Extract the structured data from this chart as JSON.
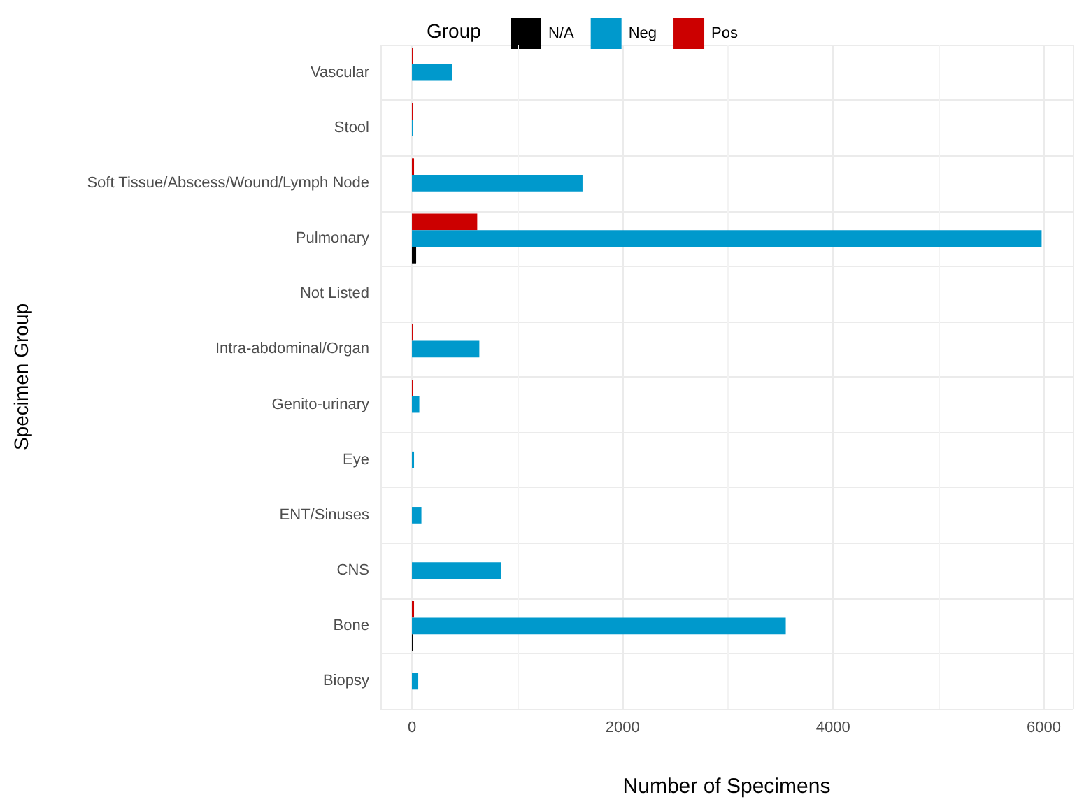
{
  "chart_data": {
    "type": "bar",
    "orientation": "horizontal",
    "xlabel": "Number of Specimens",
    "ylabel": "Specimen Group",
    "legend_title": "Group",
    "categories": [
      "Vascular",
      "Stool",
      "Soft Tissue/Abscess/Wound/Lymph Node",
      "Pulmonary",
      "Not Listed",
      "Intra-abdominal/Organ",
      "Genito-urinary",
      "Eye",
      "ENT/Sinuses",
      "CNS",
      "Bone",
      "Biopsy"
    ],
    "series": [
      {
        "name": "N/A",
        "color": "#000000",
        "values": [
          null,
          null,
          null,
          40,
          null,
          null,
          null,
          null,
          null,
          null,
          10,
          null
        ]
      },
      {
        "name": "Neg",
        "color": "#0099cc",
        "values": [
          380,
          10,
          1620,
          5980,
          null,
          640,
          70,
          20,
          90,
          850,
          3550,
          60
        ]
      },
      {
        "name": "Pos",
        "color": "#cc0000",
        "values": [
          10,
          10,
          20,
          620,
          null,
          10,
          10,
          null,
          null,
          null,
          20,
          null
        ]
      }
    ],
    "xlim": [
      -299,
      6276
    ],
    "xticks": [
      0,
      2000,
      4000,
      6000
    ],
    "grid": true,
    "legend": "top"
  }
}
